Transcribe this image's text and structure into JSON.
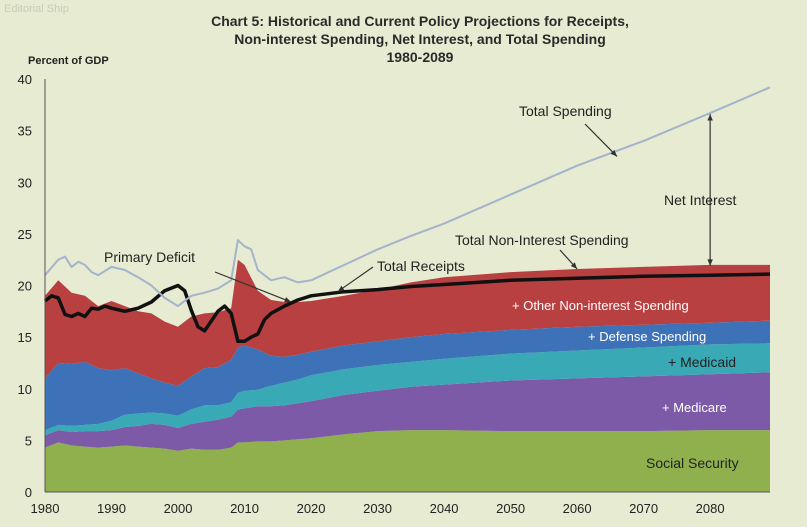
{
  "chart_data": {
    "type": "area",
    "title_lines": [
      "Chart 5:  Historical and Current Policy Projections for Receipts,",
      "Non-interest Spending, Net Interest, and Total Spending",
      "1980-2089"
    ],
    "ylabel": "Percent of GDP",
    "xlabel": "",
    "xlim": [
      1980,
      2089
    ],
    "ylim": [
      0,
      40
    ],
    "x_ticks": [
      1980,
      1990,
      2000,
      2010,
      2020,
      2030,
      2040,
      2050,
      2060,
      2070,
      2080
    ],
    "y_ticks": [
      0,
      5,
      10,
      15,
      20,
      25,
      30,
      35,
      40
    ],
    "stacked_areas": [
      {
        "name": "Social Security",
        "color": "#8fb04d",
        "x": [
          1980,
          1982,
          1984,
          1986,
          1988,
          1990,
          1992,
          1994,
          1996,
          1998,
          2000,
          2002,
          2004,
          2006,
          2008,
          2009,
          2010,
          2012,
          2014,
          2016,
          2018,
          2020,
          2025,
          2030,
          2035,
          2040,
          2050,
          2060,
          2070,
          2080,
          2089
        ],
        "cum": [
          4.3,
          4.8,
          4.5,
          4.4,
          4.3,
          4.4,
          4.5,
          4.4,
          4.3,
          4.2,
          4.0,
          4.2,
          4.1,
          4.1,
          4.3,
          4.8,
          4.8,
          4.9,
          4.9,
          5.0,
          5.1,
          5.2,
          5.6,
          5.9,
          6.0,
          6.0,
          5.9,
          5.9,
          5.9,
          6.0,
          6.0
        ]
      },
      {
        "name": "+ Medicare",
        "color": "#7c5aa8",
        "x": [
          1980,
          1982,
          1984,
          1986,
          1988,
          1990,
          1992,
          1994,
          1996,
          1998,
          2000,
          2002,
          2004,
          2006,
          2008,
          2009,
          2010,
          2012,
          2014,
          2016,
          2018,
          2020,
          2025,
          2030,
          2035,
          2040,
          2050,
          2060,
          2070,
          2080,
          2089
        ],
        "cum": [
          5.5,
          6.0,
          5.8,
          5.9,
          5.9,
          6.0,
          6.3,
          6.4,
          6.6,
          6.5,
          6.2,
          6.6,
          6.8,
          7.0,
          7.3,
          8.0,
          8.1,
          8.3,
          8.3,
          8.4,
          8.6,
          8.8,
          9.4,
          9.8,
          10.2,
          10.4,
          10.8,
          11.0,
          11.2,
          11.4,
          11.6
        ]
      },
      {
        "name": "+ Medicaid",
        "color": "#3aa9b6",
        "x": [
          1980,
          1982,
          1984,
          1986,
          1988,
          1990,
          1992,
          1994,
          1996,
          1998,
          2000,
          2002,
          2004,
          2006,
          2008,
          2009,
          2010,
          2012,
          2014,
          2016,
          2018,
          2020,
          2025,
          2030,
          2035,
          2040,
          2050,
          2060,
          2070,
          2080,
          2089
        ],
        "cum": [
          6.0,
          6.5,
          6.4,
          6.5,
          6.6,
          6.9,
          7.5,
          7.6,
          7.7,
          7.6,
          7.4,
          8.0,
          8.4,
          8.4,
          8.7,
          9.6,
          9.8,
          9.9,
          10.3,
          10.6,
          10.9,
          11.3,
          11.9,
          12.3,
          12.6,
          12.9,
          13.4,
          13.7,
          14.0,
          14.3,
          14.4
        ]
      },
      {
        "name": "+ Defense Spending",
        "color": "#3d72b8",
        "x": [
          1980,
          1982,
          1984,
          1986,
          1988,
          1990,
          1992,
          1994,
          1996,
          1998,
          2000,
          2002,
          2004,
          2006,
          2008,
          2009,
          2010,
          2012,
          2014,
          2016,
          2018,
          2020,
          2025,
          2030,
          2035,
          2040,
          2050,
          2060,
          2070,
          2080,
          2089
        ],
        "cum": [
          11.0,
          12.5,
          12.4,
          12.6,
          12.0,
          11.8,
          12.0,
          11.5,
          11.0,
          10.6,
          10.3,
          11.2,
          12.0,
          12.1,
          12.8,
          14.0,
          14.2,
          13.8,
          13.2,
          13.1,
          13.3,
          13.6,
          14.2,
          14.6,
          15.0,
          15.3,
          15.7,
          16.0,
          16.2,
          16.4,
          16.6
        ]
      },
      {
        "name": "+ Other Non-interest Spending",
        "color": "#b84040",
        "x": [
          1980,
          1982,
          1984,
          1986,
          1988,
          1990,
          1992,
          1994,
          1996,
          1998,
          2000,
          2002,
          2004,
          2006,
          2008,
          2009,
          2010,
          2012,
          2014,
          2016,
          2018,
          2020,
          2025,
          2030,
          2035,
          2040,
          2050,
          2060,
          2070,
          2080,
          2089
        ],
        "cum": [
          19.0,
          20.5,
          19.3,
          19.0,
          18.0,
          18.5,
          18.0,
          17.5,
          17.3,
          16.5,
          16.0,
          17.0,
          17.3,
          17.4,
          17.8,
          22.5,
          22.0,
          19.5,
          18.6,
          18.4,
          18.4,
          18.5,
          19.0,
          19.6,
          20.3,
          20.8,
          21.3,
          21.6,
          21.8,
          22.0,
          22.0
        ]
      }
    ],
    "lines": [
      {
        "name": "Total Receipts",
        "color": "#111111",
        "x": [
          1980,
          1981,
          1982,
          1983,
          1984,
          1985,
          1986,
          1987,
          1988,
          1989,
          1990,
          1992,
          1994,
          1996,
          1998,
          2000,
          2001,
          2002,
          2003,
          2004,
          2006,
          2007,
          2008,
          2009,
          2010,
          2011,
          2012,
          2013,
          2014,
          2016,
          2018,
          2020,
          2025,
          2030,
          2035,
          2040,
          2050,
          2060,
          2070,
          2080,
          2089
        ],
        "y": [
          18.5,
          19.0,
          18.8,
          17.2,
          17.0,
          17.3,
          17.0,
          17.8,
          17.7,
          18.0,
          17.8,
          17.5,
          17.8,
          18.4,
          19.5,
          20.0,
          19.5,
          17.6,
          16.0,
          15.6,
          17.5,
          18.0,
          17.3,
          14.6,
          14.6,
          15.0,
          15.3,
          16.7,
          17.3,
          18.0,
          18.6,
          19.0,
          19.4,
          19.6,
          19.9,
          20.1,
          20.5,
          20.7,
          20.9,
          21.0,
          21.1
        ]
      },
      {
        "name": "Total Spending",
        "color": "#a3b4cc",
        "x": [
          1980,
          1982,
          1983,
          1984,
          1985,
          1986,
          1987,
          1988,
          1990,
          1992,
          1994,
          1996,
          1998,
          2000,
          2002,
          2004,
          2006,
          2008,
          2009,
          2010,
          2011,
          2012,
          2014,
          2016,
          2018,
          2020,
          2025,
          2030,
          2035,
          2040,
          2050,
          2060,
          2070,
          2080,
          2089
        ],
        "y": [
          21.0,
          22.5,
          22.8,
          21.8,
          22.3,
          22.0,
          21.3,
          21.0,
          21.8,
          21.5,
          20.8,
          20.0,
          18.8,
          18.0,
          19.0,
          19.3,
          19.7,
          20.5,
          24.4,
          23.8,
          23.5,
          21.5,
          20.5,
          20.8,
          20.3,
          20.5,
          22.0,
          23.5,
          24.8,
          26.0,
          28.8,
          31.6,
          34.0,
          36.7,
          39.2
        ]
      }
    ],
    "annotations": {
      "total_spending": "Total Spending",
      "net_interest": "Net Interest",
      "total_non_interest_spending": "Total Non-Interest Spending",
      "total_receipts": "Total Receipts",
      "primary_deficit": "Primary Deficit"
    },
    "watermark": "Editorial Ship"
  }
}
